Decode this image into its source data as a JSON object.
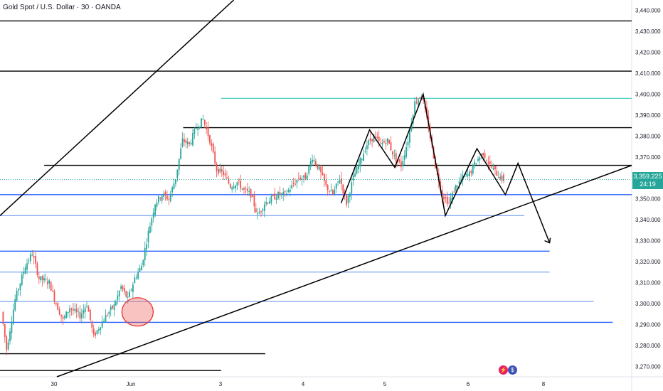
{
  "header": {
    "title": "Gold Spot / U.S. Dollar · 30 · OANDA"
  },
  "price_badge": {
    "price": "3,359.225",
    "countdown": "24:19"
  },
  "colors": {
    "up": "#26a69a",
    "down": "#ef5350",
    "hline_dark": "#000000",
    "hline_blue": "#2962ff",
    "hline_cyan": "#4dd0c4"
  },
  "chart_data": {
    "type": "candlestick",
    "instrument": "Gold Spot / U.S. Dollar",
    "timeframe": "30",
    "source": "OANDA",
    "ylim": [
      3265,
      3445
    ],
    "y_ticks": [
      "3,440.000",
      "3,430.000",
      "3,420.000",
      "3,410.000",
      "3,400.000",
      "3,390.000",
      "3,380.000",
      "3,370.000",
      "3,360.000",
      "3,350.000",
      "3,340.000",
      "3,330.000",
      "3,320.000",
      "3,310.000",
      "3,300.000",
      "3,290.000",
      "3,280.000",
      "3,270.000"
    ],
    "y_tick_values": [
      3440,
      3430,
      3420,
      3410,
      3400,
      3390,
      3380,
      3370,
      3360,
      3350,
      3340,
      3330,
      3320,
      3310,
      3300,
      3290,
      3280,
      3270
    ],
    "x_ticks": [
      "30",
      "Jun",
      "3",
      "4",
      "5",
      "6",
      "8"
    ],
    "x_tick_index": [
      0,
      1,
      2,
      3,
      4,
      5,
      6
    ],
    "last_price": 3359.225,
    "price_path": [
      [
        0,
        3296
      ],
      [
        3,
        3278
      ],
      [
        8,
        3302
      ],
      [
        14,
        3318
      ],
      [
        18,
        3324
      ],
      [
        22,
        3312
      ],
      [
        28,
        3310
      ],
      [
        32,
        3300
      ],
      [
        36,
        3292
      ],
      [
        40,
        3298
      ],
      [
        46,
        3294
      ],
      [
        50,
        3300
      ],
      [
        54,
        3284
      ],
      [
        58,
        3290
      ],
      [
        62,
        3295
      ],
      [
        66,
        3299
      ],
      [
        70,
        3308
      ],
      [
        74,
        3302
      ],
      [
        78,
        3312
      ],
      [
        82,
        3318
      ],
      [
        86,
        3334
      ],
      [
        90,
        3348
      ],
      [
        94,
        3352
      ],
      [
        98,
        3350
      ],
      [
        102,
        3360
      ],
      [
        106,
        3378
      ],
      [
        110,
        3376
      ],
      [
        114,
        3384
      ],
      [
        118,
        3388
      ],
      [
        122,
        3378
      ],
      [
        126,
        3364
      ],
      [
        130,
        3362
      ],
      [
        134,
        3356
      ],
      [
        138,
        3358
      ],
      [
        142,
        3354
      ],
      [
        146,
        3352
      ],
      [
        150,
        3342
      ],
      [
        154,
        3348
      ],
      [
        158,
        3350
      ],
      [
        162,
        3352
      ],
      [
        166,
        3352
      ],
      [
        170,
        3356
      ],
      [
        174,
        3360
      ],
      [
        178,
        3360
      ],
      [
        182,
        3370
      ],
      [
        186,
        3364
      ],
      [
        190,
        3356
      ],
      [
        194,
        3352
      ],
      [
        198,
        3360
      ],
      [
        202,
        3348
      ],
      [
        206,
        3360
      ],
      [
        210,
        3368
      ],
      [
        214,
        3376
      ],
      [
        218,
        3380
      ],
      [
        222,
        3376
      ],
      [
        226,
        3378
      ],
      [
        230,
        3370
      ],
      [
        234,
        3366
      ],
      [
        238,
        3378
      ],
      [
        242,
        3396
      ],
      [
        246,
        3400
      ],
      [
        250,
        3384
      ],
      [
        254,
        3366
      ],
      [
        258,
        3352
      ],
      [
        262,
        3348
      ],
      [
        266,
        3356
      ],
      [
        270,
        3360
      ],
      [
        274,
        3362
      ],
      [
        278,
        3368
      ],
      [
        282,
        3372
      ],
      [
        286,
        3366
      ],
      [
        290,
        3362
      ],
      [
        294,
        3359
      ]
    ],
    "horizontal_levels": [
      {
        "price": 3435,
        "style": "dark",
        "from": 0.0,
        "to": 1.0
      },
      {
        "price": 3411,
        "style": "dark",
        "from": 0.0,
        "to": 1.0
      },
      {
        "price": 3398,
        "style": "cyan",
        "from": 0.35,
        "to": 1.0
      },
      {
        "price": 3384,
        "style": "dark",
        "from": 0.29,
        "to": 1.0
      },
      {
        "price": 3366,
        "style": "dark",
        "from": 0.07,
        "to": 1.0
      },
      {
        "price": 3352,
        "style": "blue",
        "from": 0.0,
        "to": 1.0
      },
      {
        "price": 3342,
        "style": "blue-light",
        "from": 0.0,
        "to": 0.83
      },
      {
        "price": 3325,
        "style": "blue",
        "from": 0.0,
        "to": 0.87
      },
      {
        "price": 3315,
        "style": "blue-light",
        "from": 0.0,
        "to": 0.87
      },
      {
        "price": 3301,
        "style": "blue-light",
        "from": 0.0,
        "to": 0.94
      },
      {
        "price": 3291,
        "style": "blue",
        "from": 0.0,
        "to": 0.97
      },
      {
        "price": 3276,
        "style": "dark",
        "from": 0.0,
        "to": 0.42
      },
      {
        "price": 3268,
        "style": "dark",
        "from": 0.0,
        "to": 0.35
      }
    ],
    "trendlines": [
      {
        "from": [
          0.0,
          3342
        ],
        "to": [
          0.37,
          3445
        ]
      },
      {
        "from": [
          0.09,
          3265
        ],
        "to": [
          1.0,
          3366
        ]
      }
    ],
    "zigzag_pattern": [
      [
        0.54,
        3348
      ],
      [
        0.585,
        3383
      ],
      [
        0.625,
        3365
      ],
      [
        0.67,
        3400
      ],
      [
        0.705,
        3342
      ],
      [
        0.755,
        3374
      ],
      [
        0.8,
        3352
      ],
      [
        0.82,
        3367
      ],
      [
        0.87,
        3329
      ]
    ],
    "highlight_ellipse": {
      "x": 0.22,
      "price": 3296
    }
  }
}
